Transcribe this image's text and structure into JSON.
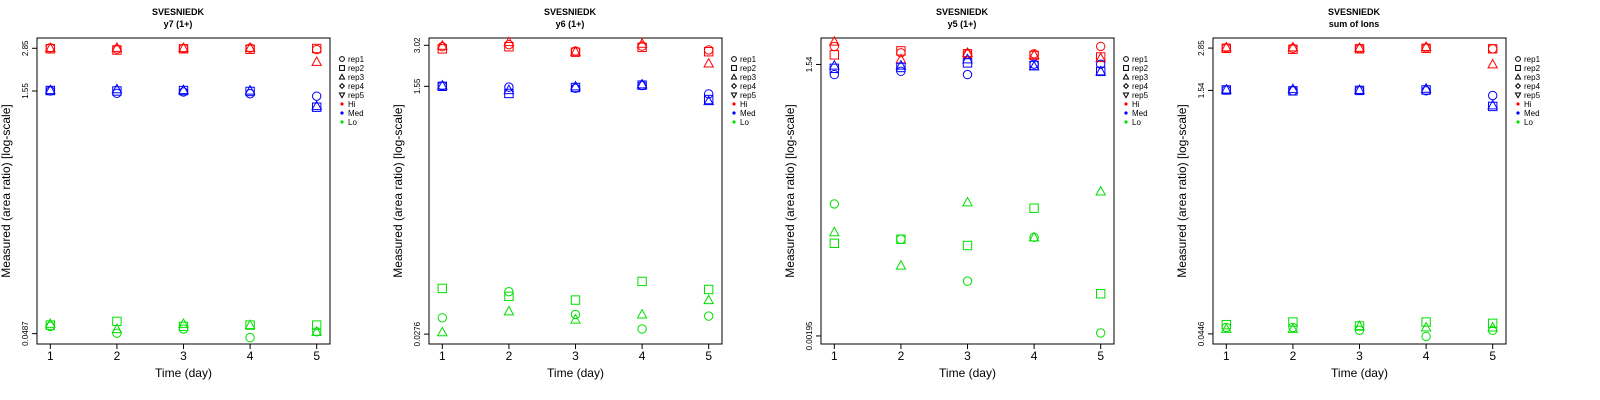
{
  "colors": {
    "Hi": "#ff0000",
    "Med": "#0000ff",
    "Lo": "#00e000",
    "axis": "#000000"
  },
  "legend": {
    "reps": [
      "rep1",
      "rep2",
      "rep3",
      "rep4",
      "rep5"
    ],
    "levels": [
      "Hi",
      "Med",
      "Lo"
    ]
  },
  "chart_data": [
    {
      "type": "scatter",
      "title": "SVESNIEDK",
      "subtitle": "y7 (1+)",
      "xlabel": "Time (day)",
      "ylabel": "Measured (area ratio) [log-scale]",
      "x_ticks": [
        "1",
        "2",
        "3",
        "4",
        "5"
      ],
      "xlim": [
        0.8,
        5.2
      ],
      "y_ticks": [
        {
          "v": 2.85,
          "label": "2.85"
        },
        {
          "v": 1.55,
          "label": "1.55"
        },
        {
          "v": 0.0487,
          "label": "0.0487"
        }
      ],
      "ylim": [
        0.042,
        3.3
      ],
      "legend_position": "right",
      "series": [
        {
          "level": "Hi",
          "rep": "rep1",
          "points": [
            [
              1,
              2.87
            ],
            [
              2,
              2.82
            ],
            [
              3,
              2.85
            ],
            [
              4,
              2.86
            ],
            [
              5,
              2.8
            ]
          ]
        },
        {
          "level": "Hi",
          "rep": "rep2",
          "points": [
            [
              1,
              2.83
            ],
            [
              2,
              2.78
            ],
            [
              3,
              2.83
            ],
            [
              4,
              2.81
            ],
            [
              5,
              2.84
            ]
          ]
        },
        {
          "level": "Hi",
          "rep": "rep3",
          "points": [
            [
              1,
              2.86
            ],
            [
              2,
              2.87
            ],
            [
              3,
              2.86
            ],
            [
              4,
              2.87
            ],
            [
              5,
              2.35
            ]
          ]
        },
        {
          "level": "Med",
          "rep": "rep1",
          "points": [
            [
              1,
              1.55
            ],
            [
              2,
              1.5
            ],
            [
              3,
              1.53
            ],
            [
              4,
              1.49
            ],
            [
              5,
              1.44
            ]
          ]
        },
        {
          "level": "Med",
          "rep": "rep2",
          "points": [
            [
              1,
              1.56
            ],
            [
              2,
              1.55
            ],
            [
              3,
              1.56
            ],
            [
              4,
              1.54
            ],
            [
              5,
              1.23
            ]
          ]
        },
        {
          "level": "Med",
          "rep": "rep3",
          "points": [
            [
              1,
              1.57
            ],
            [
              2,
              1.59
            ],
            [
              3,
              1.57
            ],
            [
              4,
              1.56
            ],
            [
              5,
              1.25
            ]
          ]
        },
        {
          "level": "Lo",
          "rep": "rep1",
          "points": [
            [
              1,
              0.054
            ],
            [
              2,
              0.049
            ],
            [
              3,
              0.052
            ],
            [
              4,
              0.046
            ],
            [
              5,
              0.05
            ]
          ]
        },
        {
          "level": "Lo",
          "rep": "rep2",
          "points": [
            [
              1,
              0.055
            ],
            [
              2,
              0.058
            ],
            [
              3,
              0.054
            ],
            [
              4,
              0.055
            ],
            [
              5,
              0.055
            ]
          ]
        },
        {
          "level": "Lo",
          "rep": "rep3",
          "points": [
            [
              1,
              0.056
            ],
            [
              2,
              0.052
            ],
            [
              3,
              0.056
            ],
            [
              4,
              0.055
            ],
            [
              5,
              0.05
            ]
          ]
        }
      ]
    },
    {
      "type": "scatter",
      "title": "SVESNIEDK",
      "subtitle": "y6 (1+)",
      "xlabel": "Time (day)",
      "ylabel": "Measured (area ratio) [log-scale]",
      "x_ticks": [
        "1",
        "2",
        "3",
        "4",
        "5"
      ],
      "xlim": [
        0.8,
        5.2
      ],
      "y_ticks": [
        {
          "v": 3.02,
          "label": "3.02"
        },
        {
          "v": 1.55,
          "label": "1.55"
        },
        {
          "v": 0.0276,
          "label": "0.0276"
        }
      ],
      "ylim": [
        0.0235,
        3.4
      ],
      "legend_position": "right",
      "series": [
        {
          "level": "Hi",
          "rep": "rep1",
          "points": [
            [
              1,
              2.95
            ],
            [
              2,
              3.05
            ],
            [
              3,
              2.75
            ],
            [
              4,
              2.98
            ],
            [
              5,
              2.8
            ]
          ]
        },
        {
          "level": "Hi",
          "rep": "rep2",
          "points": [
            [
              1,
              2.85
            ],
            [
              2,
              2.95
            ],
            [
              3,
              2.7
            ],
            [
              4,
              2.92
            ],
            [
              5,
              2.72
            ]
          ]
        },
        {
          "level": "Hi",
          "rep": "rep3",
          "points": [
            [
              1,
              3.0
            ],
            [
              2,
              3.18
            ],
            [
              3,
              2.72
            ],
            [
              4,
              3.1
            ],
            [
              5,
              2.25
            ]
          ]
        },
        {
          "level": "Med",
          "rep": "rep1",
          "points": [
            [
              1,
              1.56
            ],
            [
              2,
              1.53
            ],
            [
              3,
              1.5
            ],
            [
              4,
              1.57
            ],
            [
              5,
              1.37
            ]
          ]
        },
        {
          "level": "Med",
          "rep": "rep2",
          "points": [
            [
              1,
              1.55
            ],
            [
              2,
              1.38
            ],
            [
              3,
              1.52
            ],
            [
              4,
              1.58
            ],
            [
              5,
              1.25
            ]
          ]
        },
        {
          "level": "Med",
          "rep": "rep3",
          "points": [
            [
              1,
              1.57
            ],
            [
              2,
              1.46
            ],
            [
              3,
              1.55
            ],
            [
              4,
              1.6
            ],
            [
              5,
              1.22
            ]
          ]
        },
        {
          "level": "Lo",
          "rep": "rep1",
          "points": [
            [
              1,
              0.036
            ],
            [
              2,
              0.055
            ],
            [
              3,
              0.038
            ],
            [
              4,
              0.03
            ],
            [
              5,
              0.037
            ]
          ]
        },
        {
          "level": "Lo",
          "rep": "rep2",
          "points": [
            [
              1,
              0.058
            ],
            [
              2,
              0.051
            ],
            [
              3,
              0.048
            ],
            [
              4,
              0.065
            ],
            [
              5,
              0.057
            ]
          ]
        },
        {
          "level": "Lo",
          "rep": "rep3",
          "points": [
            [
              1,
              0.0285
            ],
            [
              2,
              0.04
            ],
            [
              3,
              0.035
            ],
            [
              4,
              0.038
            ],
            [
              5,
              0.048
            ]
          ]
        }
      ]
    },
    {
      "type": "scatter",
      "title": "SVESNIEDK",
      "subtitle": "y5 (1+)",
      "xlabel": "Time (day)",
      "ylabel": "Measured (area ratio) [log-scale]",
      "x_ticks": [
        "1",
        "2",
        "3",
        "4",
        "5"
      ],
      "xlim": [
        0.8,
        5.2
      ],
      "y_ticks": [
        {
          "v": 1.54,
          "label": "1.54"
        },
        {
          "v": 0.00195,
          "label": "0.00195"
        }
      ],
      "ylim": [
        0.0016,
        2.95
      ],
      "legend_position": "right",
      "series": [
        {
          "level": "Hi",
          "rep": "rep1",
          "points": [
            [
              1,
              2.4
            ],
            [
              2,
              2.05
            ],
            [
              3,
              1.98
            ],
            [
              4,
              2.0
            ],
            [
              5,
              2.4
            ]
          ]
        },
        {
          "level": "Hi",
          "rep": "rep2",
          "points": [
            [
              1,
              1.95
            ],
            [
              2,
              2.15
            ],
            [
              3,
              2.0
            ],
            [
              4,
              1.92
            ],
            [
              5,
              1.85
            ]
          ]
        },
        {
          "level": "Hi",
          "rep": "rep3",
          "points": [
            [
              1,
              2.7
            ],
            [
              2,
              1.75
            ],
            [
              3,
              2.05
            ],
            [
              4,
              1.95
            ],
            [
              5,
              1.8
            ]
          ]
        },
        {
          "level": "Med",
          "rep": "rep1",
          "points": [
            [
              1,
              1.2
            ],
            [
              2,
              1.3
            ],
            [
              3,
              1.2
            ],
            [
              4,
              1.55
            ],
            [
              5,
              1.55
            ]
          ]
        },
        {
          "level": "Med",
          "rep": "rep2",
          "points": [
            [
              1,
              1.4
            ],
            [
              2,
              1.43
            ],
            [
              3,
              1.6
            ],
            [
              4,
              1.5
            ],
            [
              5,
              1.3
            ]
          ]
        },
        {
          "level": "Med",
          "rep": "rep3",
          "points": [
            [
              1,
              1.5
            ],
            [
              2,
              1.5
            ],
            [
              3,
              1.75
            ],
            [
              4,
              1.47
            ],
            [
              5,
              1.3
            ]
          ]
        },
        {
          "level": "Lo",
          "rep": "rep1",
          "points": [
            [
              1,
              0.05
            ],
            [
              2,
              0.021
            ],
            [
              3,
              0.0075
            ],
            [
              4,
              0.022
            ],
            [
              5,
              0.0021
            ]
          ]
        },
        {
          "level": "Lo",
          "rep": "rep2",
          "points": [
            [
              1,
              0.019
            ],
            [
              2,
              0.021
            ],
            [
              3,
              0.018
            ],
            [
              4,
              0.045
            ],
            [
              5,
              0.0055
            ]
          ]
        },
        {
          "level": "Lo",
          "rep": "rep3",
          "points": [
            [
              1,
              0.025
            ],
            [
              2,
              0.011
            ],
            [
              3,
              0.052
            ],
            [
              4,
              0.022
            ],
            [
              5,
              0.068
            ]
          ]
        }
      ]
    },
    {
      "type": "scatter",
      "title": "SVESNIEDK",
      "subtitle": "sum of Ions",
      "xlabel": "Time (day)",
      "ylabel": "Measured (area ratio) [log-scale]",
      "x_ticks": [
        "1",
        "2",
        "3",
        "4",
        "5"
      ],
      "xlim": [
        0.8,
        5.2
      ],
      "y_ticks": [
        {
          "v": 2.85,
          "label": "2.85"
        },
        {
          "v": 1.54,
          "label": "1.54"
        },
        {
          "v": 0.0446,
          "label": "0.0446"
        }
      ],
      "ylim": [
        0.0385,
        3.3
      ],
      "legend_position": "right",
      "series": [
        {
          "level": "Hi",
          "rep": "rep1",
          "points": [
            [
              1,
              2.86
            ],
            [
              2,
              2.84
            ],
            [
              3,
              2.83
            ],
            [
              4,
              2.86
            ],
            [
              5,
              2.82
            ]
          ]
        },
        {
          "level": "Hi",
          "rep": "rep2",
          "points": [
            [
              1,
              2.84
            ],
            [
              2,
              2.8
            ],
            [
              3,
              2.82
            ],
            [
              4,
              2.84
            ],
            [
              5,
              2.82
            ]
          ]
        },
        {
          "level": "Hi",
          "rep": "rep3",
          "points": [
            [
              1,
              2.88
            ],
            [
              2,
              2.88
            ],
            [
              3,
              2.86
            ],
            [
              4,
              2.9
            ],
            [
              5,
              2.25
            ]
          ]
        },
        {
          "level": "Med",
          "rep": "rep1",
          "points": [
            [
              1,
              1.55
            ],
            [
              2,
              1.53
            ],
            [
              3,
              1.54
            ],
            [
              4,
              1.53
            ],
            [
              5,
              1.43
            ]
          ]
        },
        {
          "level": "Med",
          "rep": "rep2",
          "points": [
            [
              1,
              1.55
            ],
            [
              2,
              1.53
            ],
            [
              3,
              1.54
            ],
            [
              4,
              1.55
            ],
            [
              5,
              1.22
            ]
          ]
        },
        {
          "level": "Med",
          "rep": "rep3",
          "points": [
            [
              1,
              1.56
            ],
            [
              2,
              1.57
            ],
            [
              3,
              1.55
            ],
            [
              4,
              1.58
            ],
            [
              5,
              1.24
            ]
          ]
        },
        {
          "level": "Lo",
          "rep": "rep1",
          "points": [
            [
              1,
              0.049
            ],
            [
              2,
              0.049
            ],
            [
              3,
              0.047
            ],
            [
              4,
              0.043
            ],
            [
              5,
              0.047
            ]
          ]
        },
        {
          "level": "Lo",
          "rep": "rep2",
          "points": [
            [
              1,
              0.051
            ],
            [
              2,
              0.053
            ],
            [
              3,
              0.05
            ],
            [
              4,
              0.053
            ],
            [
              5,
              0.052
            ]
          ]
        },
        {
          "level": "Lo",
          "rep": "rep3",
          "points": [
            [
              1,
              0.048
            ],
            [
              2,
              0.048
            ],
            [
              3,
              0.05
            ],
            [
              4,
              0.049
            ],
            [
              5,
              0.049
            ]
          ]
        }
      ]
    }
  ]
}
